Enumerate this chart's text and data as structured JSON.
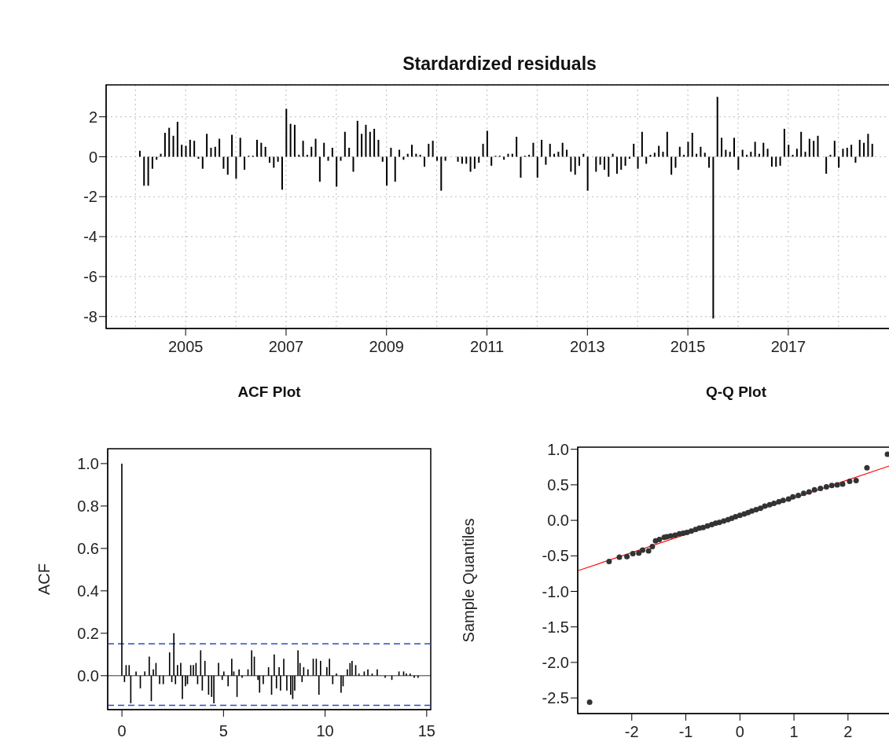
{
  "chart_data": [
    {
      "type": "bar",
      "title": "Stardardized residuals",
      "color": "#000000",
      "grid": true,
      "x": [
        "2004-01",
        "2004-02",
        "2004-03",
        "2004-04",
        "2004-05",
        "2004-06",
        "2004-07",
        "2004-08",
        "2004-09",
        "2004-10",
        "2004-11",
        "2004-12",
        "2005-01",
        "2005-02",
        "2005-03",
        "2005-04",
        "2005-05",
        "2005-06",
        "2005-07",
        "2005-08",
        "2005-09",
        "2005-10",
        "2005-11",
        "2005-12",
        "2006-01",
        "2006-02",
        "2006-03",
        "2006-04",
        "2006-05",
        "2006-06",
        "2006-07",
        "2006-08",
        "2006-09",
        "2006-10",
        "2006-11",
        "2006-12",
        "2007-01",
        "2007-02",
        "2007-03",
        "2007-04",
        "2007-05",
        "2007-06",
        "2007-07",
        "2007-08",
        "2007-09",
        "2007-10",
        "2007-11",
        "2007-12",
        "2008-01",
        "2008-02",
        "2008-03",
        "2008-04",
        "2008-05",
        "2008-06",
        "2008-07",
        "2008-08",
        "2008-09",
        "2008-10",
        "2008-11",
        "2008-12",
        "2009-01",
        "2009-02",
        "2009-03",
        "2009-04",
        "2009-05",
        "2009-06",
        "2009-07",
        "2009-08",
        "2009-09",
        "2009-10",
        "2009-11",
        "2009-12",
        "2010-01",
        "2010-02",
        "2010-03",
        "2010-04",
        "2010-05",
        "2010-06",
        "2010-07",
        "2010-08",
        "2010-09",
        "2010-10",
        "2010-11",
        "2010-12",
        "2011-01",
        "2011-02",
        "2011-03",
        "2011-04",
        "2011-05",
        "2011-06",
        "2011-07",
        "2011-08",
        "2011-09",
        "2011-10",
        "2011-11",
        "2011-12",
        "2012-01",
        "2012-02",
        "2012-03",
        "2012-04",
        "2012-05",
        "2012-06",
        "2012-07",
        "2012-08",
        "2012-09",
        "2012-10",
        "2012-11",
        "2012-12",
        "2013-01",
        "2013-02",
        "2013-03",
        "2013-04",
        "2013-05",
        "2013-06",
        "2013-07",
        "2013-08",
        "2013-09",
        "2013-10",
        "2013-11",
        "2013-12",
        "2014-01",
        "2014-02",
        "2014-03",
        "2014-04",
        "2014-05",
        "2014-06",
        "2014-07",
        "2014-08",
        "2014-09",
        "2014-10",
        "2014-11",
        "2014-12",
        "2015-01",
        "2015-02",
        "2015-03",
        "2015-04",
        "2015-05",
        "2015-06",
        "2015-07",
        "2015-08",
        "2015-09",
        "2015-10",
        "2015-11",
        "2015-12",
        "2016-01",
        "2016-02",
        "2016-03",
        "2016-04",
        "2016-05",
        "2016-06",
        "2016-07",
        "2016-08",
        "2016-09",
        "2016-10",
        "2016-11",
        "2016-12",
        "2017-01",
        "2017-02",
        "2017-03",
        "2017-04",
        "2017-05",
        "2017-06",
        "2017-07",
        "2017-08",
        "2017-09",
        "2017-10",
        "2017-11",
        "2017-12",
        "2018-01",
        "2018-02",
        "2018-03",
        "2018-04",
        "2018-05",
        "2018-06",
        "2018-07",
        "2018-08",
        "2018-09"
      ],
      "values": [
        0,
        0.3,
        -1.45,
        -1.45,
        -0.6,
        -0.15,
        0.15,
        1.2,
        1.45,
        1.05,
        1.75,
        0.6,
        0.55,
        0.85,
        0.8,
        -0.1,
        -0.6,
        1.15,
        0.45,
        0.5,
        0.9,
        -0.6,
        -0.9,
        1.1,
        -1.1,
        0.95,
        -0.65,
        0.05,
        0.05,
        0.85,
        0.7,
        0.5,
        -0.3,
        -0.55,
        -0.25,
        -1.65,
        2.4,
        1.65,
        1.6,
        0.1,
        0.8,
        0.1,
        0.5,
        0.9,
        -1.25,
        0.7,
        -0.2,
        0.45,
        -1.5,
        -0.2,
        1.25,
        0.45,
        -0.75,
        1.8,
        1.15,
        1.6,
        1.25,
        1.4,
        0.85,
        -0.25,
        -1.45,
        0.45,
        -1.25,
        0.35,
        -0.15,
        0.15,
        0.6,
        0.15,
        0.1,
        -0.5,
        0.65,
        0.8,
        -0.2,
        -1.7,
        -0.2,
        0,
        0,
        -0.25,
        -0.35,
        -0.35,
        -0.75,
        -0.6,
        -0.3,
        0.65,
        1.3,
        -0.45,
        0.05,
        0.05,
        -0.15,
        0.15,
        0.15,
        1.0,
        -1.05,
        0.05,
        0.1,
        0.7,
        -1.05,
        0.85,
        -0.4,
        0.65,
        0.15,
        0.25,
        0.7,
        0.35,
        -0.75,
        -0.9,
        -0.45,
        0.15,
        -1.7,
        0,
        -0.75,
        -0.4,
        -0.65,
        -1.0,
        0.15,
        -0.85,
        -0.65,
        -0.45,
        -0.1,
        0.65,
        -0.6,
        1.25,
        -0.35,
        0.1,
        0.2,
        0.55,
        0.25,
        1.25,
        -0.9,
        -0.55,
        0.5,
        0.1,
        0.75,
        1.2,
        0.15,
        0.5,
        0.2,
        -0.55,
        -8.1,
        3.0,
        0.95,
        0.35,
        0.25,
        0.95,
        -0.65,
        0.35,
        0.1,
        0.25,
        0.75,
        0.15,
        0.7,
        0.4,
        -0.5,
        -0.5,
        -0.45,
        1.4,
        0.6,
        0.1,
        0.4,
        1.25,
        0.25,
        0.9,
        0.8,
        1.05,
        0,
        -0.85,
        0.1,
        0.8,
        -0.55,
        0.4,
        0.45,
        0.6,
        -0.3,
        0.85,
        0.7,
        1.15,
        0.65
      ],
      "xlim": [
        "2003-06",
        "2019-02"
      ],
      "xticks": [
        {
          "value": "2004",
          "label": null
        },
        "2005",
        {
          "value": "2006",
          "label": null
        },
        "2007",
        {
          "value": "2008",
          "label": null
        },
        "2009",
        {
          "value": "2010",
          "label": null
        },
        "2011",
        {
          "value": "2012",
          "label": null
        },
        "2013",
        {
          "value": "2014",
          "label": null
        },
        "2015",
        {
          "value": "2016",
          "label": null
        },
        "2017",
        {
          "value": "2018",
          "label": null
        }
      ],
      "ylim": [
        -8.6,
        3.6
      ],
      "yticks": [
        -8,
        -6,
        -4,
        -2,
        0,
        2
      ]
    },
    {
      "type": "bar",
      "title": "ACF Plot",
      "ylabel": "ACF",
      "color": "#000000",
      "x": [
        0,
        0.13,
        0.21,
        0.36,
        0.44,
        0.7,
        0.91,
        1.13,
        1.35,
        1.45,
        1.55,
        1.68,
        1.86,
        2.04,
        2.35,
        2.46,
        2.56,
        2.64,
        2.74,
        2.9,
        2.98,
        3.13,
        3.23,
        3.39,
        3.52,
        3.65,
        3.73,
        3.88,
        3.96,
        4.09,
        4.27,
        4.42,
        4.53,
        4.76,
        4.94,
        5.02,
        5.23,
        5.41,
        5.51,
        5.67,
        5.77,
        5.92,
        6.21,
        6.39,
        6.52,
        6.7,
        6.78,
        6.96,
        7.22,
        7.37,
        7.5,
        7.61,
        7.74,
        7.81,
        7.97,
        8.12,
        8.31,
        8.41,
        8.51,
        8.67,
        8.77,
        8.87,
        8.95,
        9.16,
        9.42,
        9.57,
        9.7,
        9.78,
        10.09,
        10.22,
        10.38,
        10.56,
        10.79,
        10.89,
        11.1,
        11.23,
        11.33,
        11.51,
        11.67,
        11.93,
        12.11,
        12.32,
        12.57,
        12.96,
        13.29,
        13.64,
        13.87,
        14.0,
        14.19,
        14.39,
        14.58
      ],
      "values": [
        1.0,
        -0.03,
        0.05,
        0.05,
        -0.13,
        0.02,
        -0.06,
        0.02,
        0.09,
        -0.12,
        0.03,
        0.06,
        -0.04,
        -0.04,
        0.11,
        -0.03,
        0.2,
        -0.04,
        0.05,
        0.06,
        -0.11,
        -0.05,
        -0.04,
        0.05,
        0.05,
        0.06,
        -0.04,
        0.12,
        -0.07,
        0.07,
        -0.09,
        -0.1,
        -0.13,
        0.06,
        -0.02,
        0.02,
        -0.05,
        0.08,
        0.02,
        -0.1,
        0.03,
        -0.01,
        0.03,
        0.12,
        0.09,
        -0.02,
        -0.08,
        -0.04,
        0.04,
        -0.09,
        0.1,
        -0.06,
        0.04,
        -0.07,
        0.08,
        -0.07,
        -0.09,
        -0.11,
        -0.07,
        0.12,
        0.06,
        -0.03,
        0.04,
        0.03,
        0.08,
        0.08,
        -0.09,
        0.07,
        0.04,
        0.08,
        -0.04,
        0.01,
        -0.08,
        -0.05,
        0.03,
        0.06,
        0.07,
        0.05,
        0.01,
        0.02,
        0.03,
        0.01,
        0.03,
        -0.01,
        -0.02,
        0.02,
        0.02,
        0.01,
        0.01,
        -0.01,
        -0.01
      ],
      "xlim": [
        -0.7,
        15.2
      ],
      "xticks": [
        0,
        5,
        10,
        15
      ],
      "ylim": [
        -0.16,
        1.07
      ],
      "yticks": [
        {
          "value": 0,
          "label": "0.0"
        },
        {
          "value": 0.2,
          "label": "0.2"
        },
        {
          "value": 0.4,
          "label": "0.4"
        },
        {
          "value": 0.6,
          "label": "0.6"
        },
        {
          "value": 0.8,
          "label": "0.8"
        },
        {
          "value": 1,
          "label": "1.0"
        }
      ],
      "ref_lines": [
        {
          "axis": "y",
          "value": 0.15,
          "color": "#2a4cc0",
          "line_style": "dashed"
        },
        {
          "axis": "y",
          "value": -0.14,
          "color": "#2a4cc0",
          "line_style": "dashed"
        },
        {
          "axis": "y",
          "value": 0,
          "color": "#000000",
          "line_style": "solid"
        }
      ]
    },
    {
      "type": "scatter",
      "title": "Q-Q Plot",
      "ylabel": "Sample Quantiles",
      "series": [
        {
          "color": "#333333",
          "marker": "circle",
          "x": [
            -2.78,
            -2.42,
            -2.23,
            -2.09,
            -1.98,
            -1.87,
            -1.8,
            -1.69,
            -1.62,
            -1.56,
            -1.49,
            -1.4,
            -1.35,
            -1.28,
            -1.2,
            -1.12,
            -1.05,
            -0.98,
            -0.9,
            -0.82,
            -0.75,
            -0.68,
            -0.6,
            -0.52,
            -0.45,
            -0.38,
            -0.3,
            -0.22,
            -0.15,
            -0.08,
            0.0,
            0.08,
            0.15,
            0.22,
            0.3,
            0.38,
            0.46,
            0.55,
            0.63,
            0.72,
            0.8,
            0.9,
            0.98,
            1.08,
            1.18,
            1.28,
            1.38,
            1.49,
            1.6,
            1.7,
            1.8,
            1.9,
            2.03,
            2.15,
            2.35,
            2.73
          ],
          "values": [
            -2.56,
            -0.58,
            -0.52,
            -0.51,
            -0.47,
            -0.46,
            -0.42,
            -0.43,
            -0.37,
            -0.29,
            -0.27,
            -0.24,
            -0.23,
            -0.22,
            -0.21,
            -0.19,
            -0.18,
            -0.17,
            -0.15,
            -0.13,
            -0.11,
            -0.1,
            -0.08,
            -0.06,
            -0.04,
            -0.03,
            -0.01,
            0.01,
            0.03,
            0.05,
            0.07,
            0.09,
            0.11,
            0.13,
            0.15,
            0.17,
            0.2,
            0.22,
            0.24,
            0.26,
            0.28,
            0.3,
            0.33,
            0.35,
            0.38,
            0.4,
            0.43,
            0.45,
            0.47,
            0.49,
            0.5,
            0.51,
            0.55,
            0.56,
            0.74,
            0.93
          ]
        },
        {
          "type": "line",
          "color": "#ff0000",
          "marker": "none",
          "x": [
            -3.0,
            2.86
          ],
          "values": [
            -0.71,
            0.79
          ]
        }
      ],
      "xlim": [
        -3.0,
        2.86
      ],
      "xticks": [
        -2,
        -1,
        0,
        1,
        2
      ],
      "ylim": [
        -2.72,
        1.03
      ],
      "yticks": [
        {
          "value": -2.5,
          "label": "-2.5"
        },
        {
          "value": -2,
          "label": "-2.0"
        },
        {
          "value": -1.5,
          "label": "-1.5"
        },
        {
          "value": -1,
          "label": "-1.0"
        },
        {
          "value": -0.5,
          "label": "-0.5"
        },
        {
          "value": 0,
          "label": "0.0"
        },
        {
          "value": 0.5,
          "label": "0.5"
        },
        {
          "value": 1,
          "label": "1.0"
        }
      ]
    }
  ]
}
